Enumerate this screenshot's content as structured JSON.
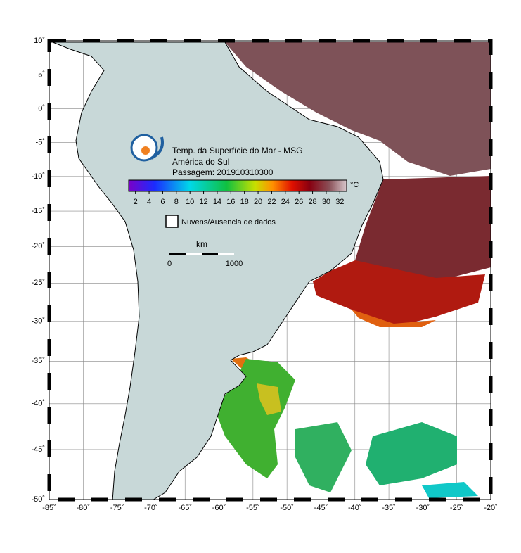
{
  "map": {
    "title_lines": [
      "Temp. da Superfície do Mar - MSG",
      "América do Sul",
      "Passagem: 201910310300"
    ],
    "lonlim": [
      -85,
      -20
    ],
    "latlim": [
      -50,
      10
    ],
    "lon_ticks": [
      {
        "value": -85,
        "label": "-85˚"
      },
      {
        "value": -80,
        "label": "-80˚"
      },
      {
        "value": -75,
        "label": "-75˚"
      },
      {
        "value": -70,
        "label": "-70˚"
      },
      {
        "value": -65,
        "label": "-65˚"
      },
      {
        "value": -60,
        "label": "-60˚"
      },
      {
        "value": -55,
        "label": "-55˚"
      },
      {
        "value": -50,
        "label": "-50˚"
      },
      {
        "value": -45,
        "label": "-45˚"
      },
      {
        "value": -40,
        "label": "-40˚"
      },
      {
        "value": -35,
        "label": "-35˚"
      },
      {
        "value": -30,
        "label": "-30˚"
      },
      {
        "value": -25,
        "label": "-25˚"
      },
      {
        "value": -20,
        "label": "-20˚"
      }
    ],
    "lat_ticks": [
      {
        "value": 10,
        "label": "10˚"
      },
      {
        "value": 5,
        "label": "5˚"
      },
      {
        "value": 0,
        "label": "0˚"
      },
      {
        "value": -5,
        "label": "-5˚"
      },
      {
        "value": -10,
        "label": "-10˚"
      },
      {
        "value": -15,
        "label": "-15˚"
      },
      {
        "value": -20,
        "label": "-20˚"
      },
      {
        "value": -25,
        "label": "-25˚"
      },
      {
        "value": -30,
        "label": "-30˚"
      },
      {
        "value": -35,
        "label": "-35˚"
      },
      {
        "value": -40,
        "label": "-40˚"
      },
      {
        "value": -45,
        "label": "-45˚"
      },
      {
        "value": -50,
        "label": "-50˚"
      }
    ],
    "colorbar": {
      "range": [
        1,
        33
      ],
      "ticks": [
        2,
        4,
        6,
        8,
        10,
        12,
        14,
        16,
        18,
        20,
        22,
        24,
        26,
        28,
        30,
        32
      ],
      "unit": "°C"
    },
    "legend": "Nuvens/Ausencia de dados",
    "scale": {
      "unit": "km",
      "labels": [
        0,
        1000
      ]
    }
  }
}
